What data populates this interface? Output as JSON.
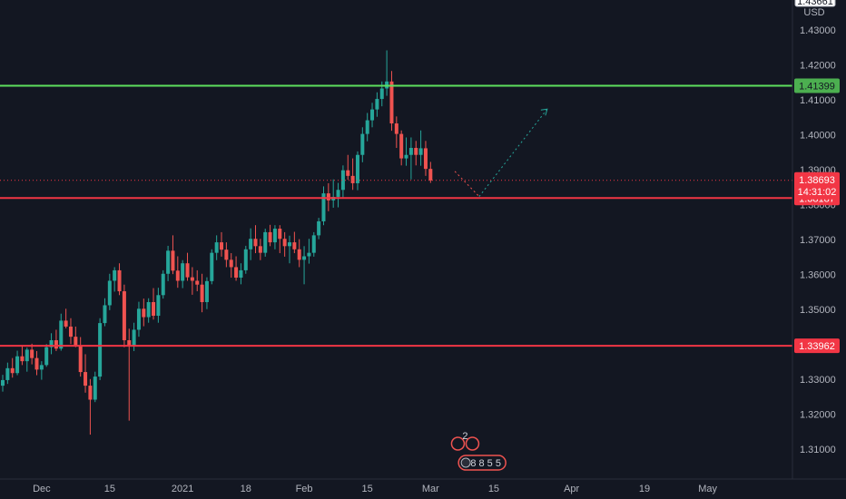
{
  "chart_data": {
    "type": "candlestick",
    "currency": "USD",
    "top_price_label": "1.43661",
    "y_ticks": [
      "1.43000",
      "1.42000",
      "1.41000",
      "1.40000",
      "1.39000",
      "1.38000",
      "1.37000",
      "1.36000",
      "1.35000",
      "1.34000",
      "1.33000",
      "1.32000",
      "1.31000"
    ],
    "y_tick_values": [
      1.43,
      1.42,
      1.41,
      1.4,
      1.39,
      1.38,
      1.37,
      1.36,
      1.35,
      1.34,
      1.33,
      1.32,
      1.31
    ],
    "ylim": [
      1.3015,
      1.4385
    ],
    "x_ticks": [
      "Dec",
      "15",
      "2021",
      "18",
      "Feb",
      "15",
      "Mar",
      "15",
      "Apr",
      "19",
      "May"
    ],
    "x_tick_index": [
      8,
      22,
      37,
      50,
      62,
      75,
      88,
      101,
      117,
      132,
      145
    ],
    "x_count": 163,
    "levels": [
      {
        "price": 1.41399,
        "label": "1.41399",
        "color": "#4caf50",
        "line": "#5ee05e"
      },
      {
        "price": 1.38187,
        "label": "1.38187",
        "color": "#f23645",
        "line": "#f23645"
      },
      {
        "price": 1.33962,
        "label": "1.33962",
        "color": "#f23645",
        "line": "#f23645"
      }
    ],
    "current_price": {
      "price": 1.38693,
      "label": "1.38693",
      "countdown": "14:31:02",
      "color": "#f23645"
    },
    "projection": [
      {
        "x": 93,
        "y": 1.3895
      },
      {
        "x": 98,
        "y": 1.3823
      },
      {
        "x": 112,
        "y": 1.4073
      }
    ],
    "events": [
      {
        "x": 94,
        "label": "2"
      },
      {
        "x": 96,
        "label": "8 8 5 5"
      }
    ],
    "colors": {
      "up": "#26a69a",
      "down": "#ef5350",
      "background": "#131722",
      "axis_text": "#b2b5be"
    },
    "candles": [
      [
        1.3282,
        1.3313,
        1.3265,
        1.3298
      ],
      [
        1.3298,
        1.3348,
        1.3287,
        1.3332
      ],
      [
        1.3332,
        1.3361,
        1.3305,
        1.3318
      ],
      [
        1.3318,
        1.3382,
        1.3312,
        1.3366
      ],
      [
        1.3366,
        1.3398,
        1.3341,
        1.3352
      ],
      [
        1.3352,
        1.3391,
        1.3322,
        1.3385
      ],
      [
        1.3385,
        1.3402,
        1.3343,
        1.3361
      ],
      [
        1.3361,
        1.3381,
        1.3312,
        1.3328
      ],
      [
        1.3328,
        1.3352,
        1.3299,
        1.3341
      ],
      [
        1.3341,
        1.3401,
        1.3336,
        1.3392
      ],
      [
        1.3392,
        1.3432,
        1.3372,
        1.3412
      ],
      [
        1.3412,
        1.3442,
        1.3381,
        1.3388
      ],
      [
        1.3388,
        1.3488,
        1.3382,
        1.3468
      ],
      [
        1.3468,
        1.3502,
        1.3446,
        1.3451
      ],
      [
        1.3451,
        1.3475,
        1.3401,
        1.3422
      ],
      [
        1.3422,
        1.3451,
        1.3392,
        1.3398
      ],
      [
        1.3398,
        1.3421,
        1.3308,
        1.3321
      ],
      [
        1.3321,
        1.3372,
        1.3262,
        1.3282
      ],
      [
        1.3282,
        1.3301,
        1.3142,
        1.3242
      ],
      [
        1.3242,
        1.3322,
        1.3235,
        1.3308
      ],
      [
        1.3308,
        1.3475,
        1.3298,
        1.3461
      ],
      [
        1.3461,
        1.3532,
        1.3452,
        1.3512
      ],
      [
        1.3512,
        1.3602,
        1.3498,
        1.3582
      ],
      [
        1.3582,
        1.3621,
        1.3551,
        1.3612
      ],
      [
        1.3612,
        1.3632,
        1.3541,
        1.3552
      ],
      [
        1.3552,
        1.3571,
        1.3392,
        1.3412
      ],
      [
        1.3412,
        1.3445,
        1.3182,
        1.3395
      ],
      [
        1.3395,
        1.3462,
        1.3381,
        1.3442
      ],
      [
        1.3442,
        1.3522,
        1.3422,
        1.3502
      ],
      [
        1.3502,
        1.3531,
        1.3452,
        1.3478
      ],
      [
        1.3478,
        1.3532,
        1.3462,
        1.3521
      ],
      [
        1.3521,
        1.3561,
        1.3471,
        1.3482
      ],
      [
        1.3482,
        1.3562,
        1.3462,
        1.3541
      ],
      [
        1.3541,
        1.3612,
        1.3531,
        1.3602
      ],
      [
        1.3602,
        1.3682,
        1.3581,
        1.3668
      ],
      [
        1.3668,
        1.3712,
        1.3601,
        1.3611
      ],
      [
        1.3611,
        1.3652,
        1.3562,
        1.3582
      ],
      [
        1.3582,
        1.3641,
        1.3561,
        1.3632
      ],
      [
        1.3632,
        1.3662,
        1.3582,
        1.3592
      ],
      [
        1.3592,
        1.3621,
        1.3542,
        1.3582
      ],
      [
        1.3582,
        1.3612,
        1.3552,
        1.3571
      ],
      [
        1.3571,
        1.3602,
        1.3492,
        1.3521
      ],
      [
        1.3521,
        1.3592,
        1.3501,
        1.3581
      ],
      [
        1.3581,
        1.3672,
        1.3572,
        1.3662
      ],
      [
        1.3662,
        1.3712,
        1.3641,
        1.3692
      ],
      [
        1.3692,
        1.3721,
        1.3651,
        1.3671
      ],
      [
        1.3671,
        1.3692,
        1.3621,
        1.3642
      ],
      [
        1.3642,
        1.3661,
        1.3591,
        1.3621
      ],
      [
        1.3621,
        1.3652,
        1.3582,
        1.3591
      ],
      [
        1.3591,
        1.3632,
        1.3572,
        1.3612
      ],
      [
        1.3612,
        1.3682,
        1.3602,
        1.3672
      ],
      [
        1.3672,
        1.3732,
        1.3641,
        1.3702
      ],
      [
        1.3702,
        1.3741,
        1.3661,
        1.3681
      ],
      [
        1.3681,
        1.3702,
        1.3641,
        1.3662
      ],
      [
        1.3662,
        1.3731,
        1.3651,
        1.3721
      ],
      [
        1.3721,
        1.3742,
        1.3681,
        1.3692
      ],
      [
        1.3692,
        1.3741,
        1.3672,
        1.3731
      ],
      [
        1.3731,
        1.3741,
        1.3661,
        1.3702
      ],
      [
        1.3702,
        1.3721,
        1.3651,
        1.3681
      ],
      [
        1.3681,
        1.3711,
        1.3632,
        1.3692
      ],
      [
        1.3692,
        1.3722,
        1.3661,
        1.3672
      ],
      [
        1.3672,
        1.3701,
        1.3621,
        1.3642
      ],
      [
        1.3642,
        1.3681,
        1.3572,
        1.3652
      ],
      [
        1.3652,
        1.3702,
        1.3631,
        1.3662
      ],
      [
        1.3662,
        1.3721,
        1.3651,
        1.3712
      ],
      [
        1.3712,
        1.3762,
        1.3701,
        1.3752
      ],
      [
        1.3752,
        1.3852,
        1.3741,
        1.3832
      ],
      [
        1.3832,
        1.3861,
        1.3781,
        1.3812
      ],
      [
        1.3812,
        1.3872,
        1.3791,
        1.3822
      ],
      [
        1.3822,
        1.3862,
        1.3792,
        1.3842
      ],
      [
        1.3842,
        1.3912,
        1.3821,
        1.3898
      ],
      [
        1.3898,
        1.3942,
        1.3871,
        1.3882
      ],
      [
        1.3882,
        1.3932,
        1.3842,
        1.3861
      ],
      [
        1.3861,
        1.3952,
        1.3841,
        1.3942
      ],
      [
        1.3942,
        1.4021,
        1.3921,
        1.4002
      ],
      [
        1.4002,
        1.4062,
        1.3981,
        1.4041
      ],
      [
        1.4041,
        1.4091,
        1.4021,
        1.4072
      ],
      [
        1.4072,
        1.4121,
        1.4051,
        1.4102
      ],
      [
        1.4102,
        1.4152,
        1.4081,
        1.4132
      ],
      [
        1.4132,
        1.4241,
        1.4111,
        1.4152
      ],
      [
        1.4152,
        1.4182,
        1.4011,
        1.4032
      ],
      [
        1.4032,
        1.4052,
        1.3962,
        1.4002
      ],
      [
        1.4002,
        1.4012,
        1.3912,
        1.3932
      ],
      [
        1.3932,
        1.3992,
        1.3911,
        1.3942
      ],
      [
        1.3942,
        1.3992,
        1.3872,
        1.3962
      ],
      [
        1.3962,
        1.3982,
        1.3912,
        1.3942
      ],
      [
        1.3942,
        1.4012,
        1.3911,
        1.3961
      ],
      [
        1.3961,
        1.3982,
        1.3882,
        1.3902
      ],
      [
        1.3902,
        1.3922,
        1.3862,
        1.3869
      ]
    ]
  }
}
